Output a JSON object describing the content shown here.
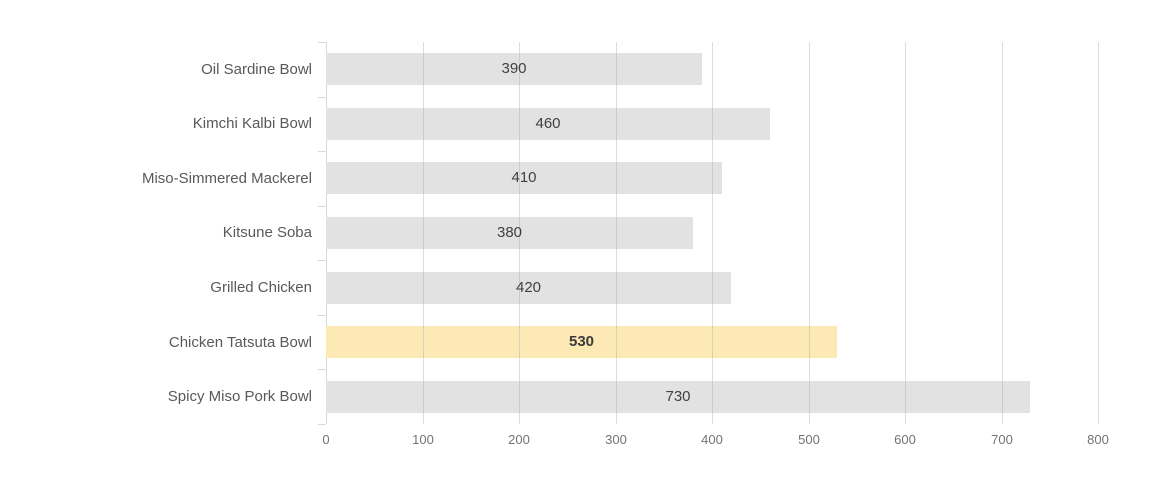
{
  "chart_data": {
    "type": "bar",
    "orientation": "horizontal",
    "title": "",
    "xlabel": "",
    "ylabel": "",
    "categories": [
      "Oil Sardine Bowl",
      "Kimchi Kalbi Bowl",
      "Miso-Simmered Mackerel",
      "Kitsune Soba",
      "Grilled Chicken",
      "Chicken Tatsuta Bowl",
      "Spicy Miso Pork Bowl"
    ],
    "values": [
      390,
      460,
      410,
      380,
      420,
      530,
      730
    ],
    "value_labels": [
      "390",
      "460",
      "410",
      "380",
      "420",
      "530",
      "730"
    ],
    "highlighted_index": 5,
    "highlighted_category": "Chicken Tatsuta Bowl",
    "xlim": [
      0,
      800
    ],
    "x_ticks": [
      0,
      100,
      200,
      300,
      400,
      500,
      600,
      700,
      800
    ],
    "grid": true,
    "legend": "none",
    "colors": {
      "bar": "#e2e2e2",
      "highlight_bar": "#fce9b4",
      "gridline": "#d9d9d9",
      "axis_line": "#d9d9d9",
      "category_label": "#595959",
      "value_label": "#404040",
      "tick_label": "#737373",
      "background": "#ffffff"
    }
  }
}
